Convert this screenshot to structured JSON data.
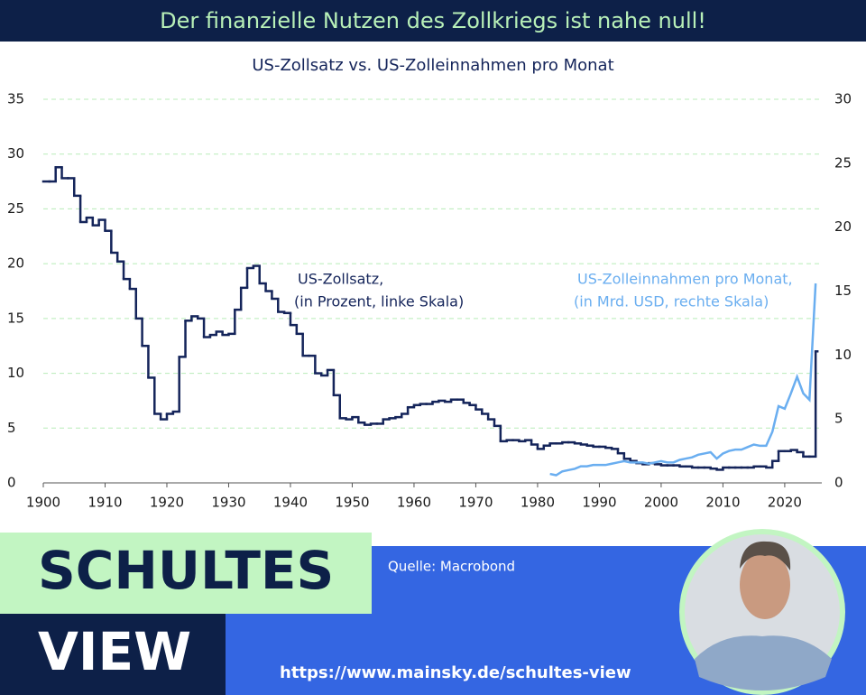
{
  "header": {
    "title": "Der finanzielle Nutzen des Zollkriegs ist nahe null!"
  },
  "chart_data": {
    "type": "line",
    "subtitle": "US-Zollsatz vs. US-Zolleinnahmen pro Monat",
    "xlim": [
      1900,
      2026
    ],
    "xticks": [
      1900,
      1910,
      1920,
      1930,
      1940,
      1950,
      1960,
      1970,
      1980,
      1990,
      2000,
      2010,
      2020
    ],
    "ylim": [
      0,
      35
    ],
    "yticks": [
      0,
      5,
      10,
      15,
      20,
      25,
      30,
      35
    ],
    "y2lim": [
      0,
      30
    ],
    "y2ticks": [
      0,
      5,
      10,
      15,
      20,
      25,
      30
    ],
    "grid": true,
    "series": [
      {
        "name": "US-Zollsatz,",
        "note": "(in Prozent, linke Skala)",
        "color": "#14245a",
        "step": true,
        "x": [
          1900,
          1901,
          1902,
          1903,
          1904,
          1905,
          1906,
          1907,
          1908,
          1909,
          1910,
          1911,
          1912,
          1913,
          1914,
          1915,
          1916,
          1917,
          1918,
          1919,
          1920,
          1921,
          1922,
          1923,
          1924,
          1925,
          1926,
          1927,
          1928,
          1929,
          1930,
          1931,
          1932,
          1933,
          1934,
          1935,
          1936,
          1937,
          1938,
          1939,
          1940,
          1941,
          1942,
          1943,
          1944,
          1945,
          1946,
          1947,
          1948,
          1949,
          1950,
          1951,
          1952,
          1953,
          1954,
          1955,
          1956,
          1957,
          1958,
          1959,
          1960,
          1961,
          1962,
          1963,
          1964,
          1965,
          1966,
          1967,
          1968,
          1969,
          1970,
          1971,
          1972,
          1973,
          1974,
          1975,
          1976,
          1977,
          1978,
          1979,
          1980,
          1981,
          1982,
          1983,
          1984,
          1985,
          1986,
          1987,
          1988,
          1989,
          1990,
          1991,
          1992,
          1993,
          1994,
          1995,
          1996,
          1997,
          1998,
          1999,
          2000,
          2001,
          2002,
          2003,
          2004,
          2005,
          2006,
          2007,
          2008,
          2009,
          2010,
          2011,
          2012,
          2013,
          2014,
          2015,
          2016,
          2017,
          2018,
          2019,
          2020,
          2021,
          2022,
          2023,
          2024,
          2025
        ],
        "values": [
          27.5,
          27.5,
          28.8,
          27.8,
          27.8,
          26.2,
          23.8,
          24.2,
          23.5,
          24.0,
          23.0,
          21.0,
          20.2,
          18.6,
          17.7,
          15.0,
          12.5,
          9.6,
          6.3,
          5.8,
          6.3,
          6.5,
          11.5,
          14.8,
          15.2,
          15.0,
          13.3,
          13.5,
          13.8,
          13.5,
          13.6,
          15.8,
          17.8,
          19.6,
          19.8,
          18.2,
          17.5,
          16.8,
          15.6,
          15.5,
          14.4,
          13.6,
          11.6,
          11.6,
          10.0,
          9.8,
          10.3,
          8.0,
          5.9,
          5.8,
          6.0,
          5.5,
          5.3,
          5.4,
          5.4,
          5.8,
          5.9,
          6.0,
          6.3,
          6.9,
          7.1,
          7.2,
          7.2,
          7.4,
          7.5,
          7.4,
          7.6,
          7.6,
          7.3,
          7.1,
          6.7,
          6.3,
          5.8,
          5.2,
          3.8,
          3.9,
          3.9,
          3.8,
          3.9,
          3.5,
          3.1,
          3.4,
          3.6,
          3.6,
          3.7,
          3.7,
          3.6,
          3.5,
          3.4,
          3.3,
          3.3,
          3.2,
          3.1,
          2.7,
          2.2,
          2.0,
          1.8,
          1.7,
          1.8,
          1.7,
          1.6,
          1.6,
          1.6,
          1.5,
          1.5,
          1.4,
          1.4,
          1.4,
          1.3,
          1.2,
          1.4,
          1.4,
          1.4,
          1.4,
          1.4,
          1.5,
          1.5,
          1.4,
          2.0,
          2.9,
          2.9,
          3.0,
          2.8,
          2.4,
          2.4,
          12.0
        ]
      },
      {
        "name": "US-Zolleinnahmen pro Monat,",
        "note": "(in Mrd. USD, rechte Skala)",
        "color": "#6aaef0",
        "axis": "y2",
        "x": [
          1982,
          1983,
          1984,
          1985,
          1986,
          1987,
          1988,
          1989,
          1990,
          1991,
          1992,
          1993,
          1994,
          1995,
          1996,
          1997,
          1998,
          1999,
          2000,
          2001,
          2002,
          2003,
          2004,
          2005,
          2006,
          2007,
          2008,
          2009,
          2010,
          2011,
          2012,
          2013,
          2014,
          2015,
          2016,
          2017,
          2018,
          2019,
          2020,
          2021,
          2022,
          2023,
          2024,
          2025
        ],
        "values": [
          0.7,
          0.6,
          0.9,
          1.0,
          1.1,
          1.3,
          1.3,
          1.4,
          1.4,
          1.4,
          1.5,
          1.6,
          1.7,
          1.6,
          1.6,
          1.6,
          1.5,
          1.6,
          1.7,
          1.6,
          1.6,
          1.8,
          1.9,
          2.0,
          2.2,
          2.3,
          2.4,
          1.9,
          2.3,
          2.5,
          2.6,
          2.6,
          2.8,
          3.0,
          2.9,
          2.9,
          4.0,
          6.0,
          5.8,
          7.0,
          8.3,
          7.0,
          6.5,
          15.6
        ]
      }
    ]
  },
  "footer": {
    "brand_top": "SCHULTES",
    "brand_bottom": "VIEW",
    "source": "Quelle: Macrobond",
    "url": "https://www.mainsky.de/schultes-view"
  }
}
